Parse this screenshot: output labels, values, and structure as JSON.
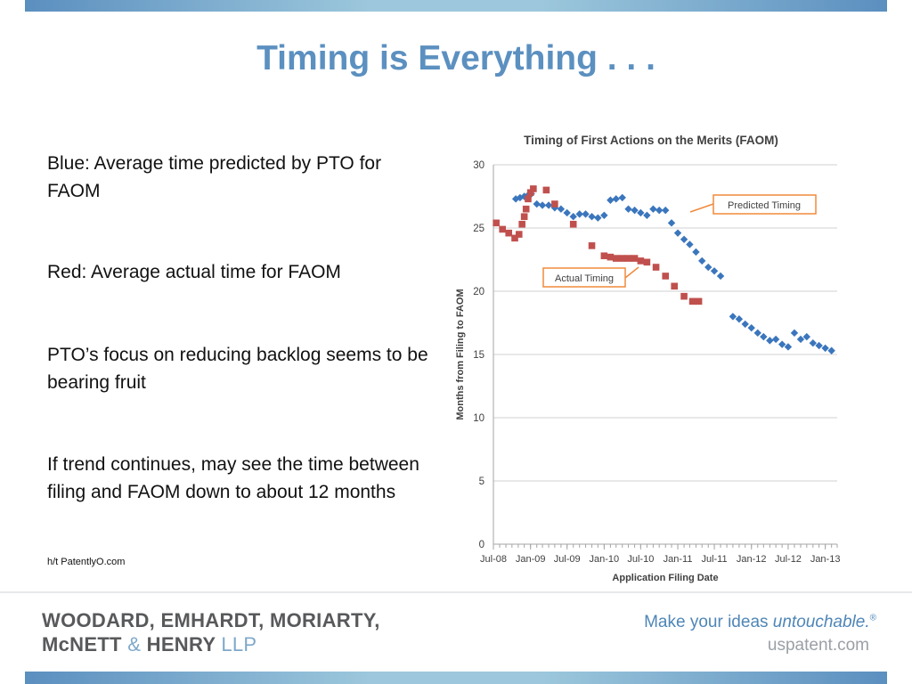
{
  "slide": {
    "title": "Timing is Everything . . .",
    "bullets": [
      "Blue:  Average time predicted by PTO for FAOM",
      "Red:  Average actual time for FAOM",
      "PTO’s focus on reducing backlog seems to be bearing fruit",
      "If trend continues, may see the time between filing and FAOM down to about 12 months"
    ],
    "credit": "h/t PatentlyO.com"
  },
  "footer": {
    "firm_line1": "WOODARD, EMHARDT, MORIARTY,",
    "firm_mc": "McNETT",
    "firm_amp": "&",
    "firm_henry": "HENRY",
    "firm_llp": "LLP",
    "tagline_prefix": "Make your ideas ",
    "tagline_emphasis": "untouchable.",
    "tagline_mark": "®",
    "website": "uspatent.com"
  },
  "colors": {
    "title": "#5b90c0",
    "predicted": "#3b76bd",
    "actual": "#c0504d",
    "callout_border": "#f08a3c",
    "grid": "#d9d9d9"
  },
  "chart_data": {
    "type": "scatter",
    "title": "Timing of First Actions on the Merits (FAOM)",
    "xlabel": "Application Filing Date",
    "ylabel": "Months from Filing to FAOM",
    "x_ticks": [
      "Jul-08",
      "Jan-09",
      "Jul-09",
      "Jan-10",
      "Jul-10",
      "Jan-11",
      "Jul-11",
      "Jan-12",
      "Jul-12",
      "Jan-13"
    ],
    "x_range": [
      "2008-07",
      "2013-03"
    ],
    "y_ticks": [
      0,
      5,
      10,
      15,
      20,
      25,
      30
    ],
    "ylim": [
      0,
      30
    ],
    "grid": true,
    "annotations": [
      {
        "label": "Predicted Timing",
        "series": "Predicted Timing"
      },
      {
        "label": "Actual Timing",
        "series": "Actual Timing"
      }
    ],
    "series": [
      {
        "name": "Predicted Timing",
        "marker": "diamond",
        "points": [
          [
            "2008-10-20",
            27.3
          ],
          [
            "2008-11-10",
            27.4
          ],
          [
            "2008-12-01",
            27.5
          ],
          [
            "2008-12-20",
            27.6
          ],
          [
            "2009-01-05",
            27.7
          ],
          [
            "2009-02-01",
            26.9
          ],
          [
            "2009-03-01",
            26.8
          ],
          [
            "2009-04-01",
            26.8
          ],
          [
            "2009-05-01",
            26.6
          ],
          [
            "2009-06-01",
            26.5
          ],
          [
            "2009-07-01",
            26.2
          ],
          [
            "2009-08-01",
            25.9
          ],
          [
            "2009-09-01",
            26.1
          ],
          [
            "2009-10-01",
            26.1
          ],
          [
            "2009-11-01",
            25.9
          ],
          [
            "2009-12-01",
            25.8
          ],
          [
            "2010-01-01",
            26.0
          ],
          [
            "2010-02-01",
            27.2
          ],
          [
            "2010-03-01",
            27.3
          ],
          [
            "2010-04-01",
            27.4
          ],
          [
            "2010-05-01",
            26.5
          ],
          [
            "2010-06-01",
            26.4
          ],
          [
            "2010-07-01",
            26.2
          ],
          [
            "2010-08-01",
            26.0
          ],
          [
            "2010-09-01",
            26.5
          ],
          [
            "2010-10-01",
            26.4
          ],
          [
            "2010-11-01",
            26.4
          ],
          [
            "2010-12-01",
            25.4
          ],
          [
            "2011-01-01",
            24.6
          ],
          [
            "2011-02-01",
            24.1
          ],
          [
            "2011-03-01",
            23.7
          ],
          [
            "2011-04-01",
            23.1
          ],
          [
            "2011-05-01",
            22.4
          ],
          [
            "2011-06-01",
            21.9
          ],
          [
            "2011-07-01",
            21.6
          ],
          [
            "2011-08-01",
            21.2
          ],
          [
            "2011-10-01",
            18.0
          ],
          [
            "2011-11-01",
            17.8
          ],
          [
            "2011-12-01",
            17.4
          ],
          [
            "2012-01-01",
            17.1
          ],
          [
            "2012-02-01",
            16.7
          ],
          [
            "2012-03-01",
            16.4
          ],
          [
            "2012-04-01",
            16.1
          ],
          [
            "2012-05-01",
            16.2
          ],
          [
            "2012-06-01",
            15.8
          ],
          [
            "2012-07-01",
            15.6
          ],
          [
            "2012-08-01",
            16.7
          ],
          [
            "2012-09-01",
            16.2
          ],
          [
            "2012-10-01",
            16.4
          ],
          [
            "2012-11-01",
            15.9
          ],
          [
            "2012-12-01",
            15.7
          ],
          [
            "2013-01-01",
            15.5
          ],
          [
            "2013-02-01",
            15.3
          ]
        ]
      },
      {
        "name": "Actual Timing",
        "marker": "square",
        "points": [
          [
            "2008-07-15",
            25.4
          ],
          [
            "2008-08-15",
            24.9
          ],
          [
            "2008-09-15",
            24.6
          ],
          [
            "2008-10-15",
            24.2
          ],
          [
            "2008-11-05",
            24.5
          ],
          [
            "2008-11-20",
            25.3
          ],
          [
            "2008-12-01",
            25.9
          ],
          [
            "2008-12-10",
            26.5
          ],
          [
            "2008-12-20",
            27.3
          ],
          [
            "2009-01-01",
            27.8
          ],
          [
            "2009-01-15",
            28.1
          ],
          [
            "2009-03-20",
            28.0
          ],
          [
            "2009-05-01",
            26.9
          ],
          [
            "2009-08-01",
            25.3
          ],
          [
            "2009-11-01",
            23.6
          ],
          [
            "2010-01-01",
            22.8
          ],
          [
            "2010-02-01",
            22.7
          ],
          [
            "2010-03-01",
            22.6
          ],
          [
            "2010-04-01",
            22.6
          ],
          [
            "2010-05-01",
            22.6
          ],
          [
            "2010-06-01",
            22.6
          ],
          [
            "2010-07-01",
            22.4
          ],
          [
            "2010-08-01",
            22.3
          ],
          [
            "2010-09-15",
            21.9
          ],
          [
            "2010-11-01",
            21.2
          ],
          [
            "2010-12-15",
            20.4
          ],
          [
            "2011-02-01",
            19.6
          ],
          [
            "2011-03-15",
            19.2
          ],
          [
            "2011-04-15",
            19.2
          ]
        ]
      }
    ]
  }
}
